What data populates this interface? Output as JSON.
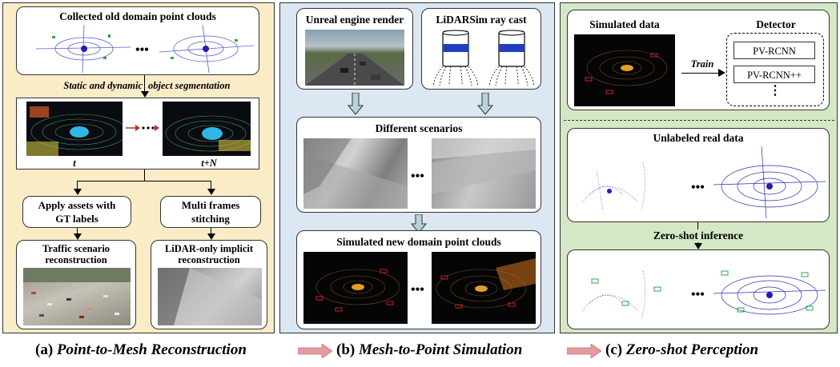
{
  "panel_a": {
    "collected_title": "Collected old domain point clouds",
    "segmentation_label_1": "Static and dynamic",
    "segmentation_label_2": "object segmentation",
    "frame_t": "t",
    "frame_tn": "t+N",
    "apply_assets_line1": "Apply assets with",
    "apply_assets_line2": "GT labels",
    "multi_frames_line1": "Multi frames",
    "multi_frames_line2": "stitching",
    "traffic_line1": "Traffic scenario",
    "traffic_line2": "reconstruction",
    "lidar_only_line1": "LiDAR-only implicit",
    "lidar_only_line2": "reconstruction",
    "ellipsis": "•••"
  },
  "panel_b": {
    "unreal_title": "Unreal engine render",
    "lidarsim_title": "LiDARSim ray cast",
    "scenarios_title": "Different scenarios",
    "simulated_title": "Simulated new domain point clouds",
    "ellipsis": "•••"
  },
  "panel_c": {
    "simulated_data_title": "Simulated data",
    "detector_title": "Detector",
    "train_label": "Train",
    "detector_1": "PV-RCNN",
    "detector_2": "PV-RCNN++",
    "detector_more": "⋮",
    "unlabeled_title": "Unlabeled real data",
    "zeroshot_label": "Zero-shot inference",
    "ellipsis": "•••"
  },
  "caption": {
    "a_prefix": "(a) ",
    "a_text": "Point-to-Mesh Reconstruction",
    "b_prefix": "(b) ",
    "b_text": "Mesh-to-Point Simulation",
    "c_prefix": "(c) ",
    "c_text": "Zero-shot Perception"
  },
  "colors": {
    "panel_a_bg": "#fbecc8",
    "panel_b_bg": "#dbe7f3",
    "panel_c_bg": "#d4e8c5",
    "caption_arrow": "#e59a9e",
    "flow_arrow": "#b7d3da",
    "lidar_band": "#1f3fbf"
  }
}
